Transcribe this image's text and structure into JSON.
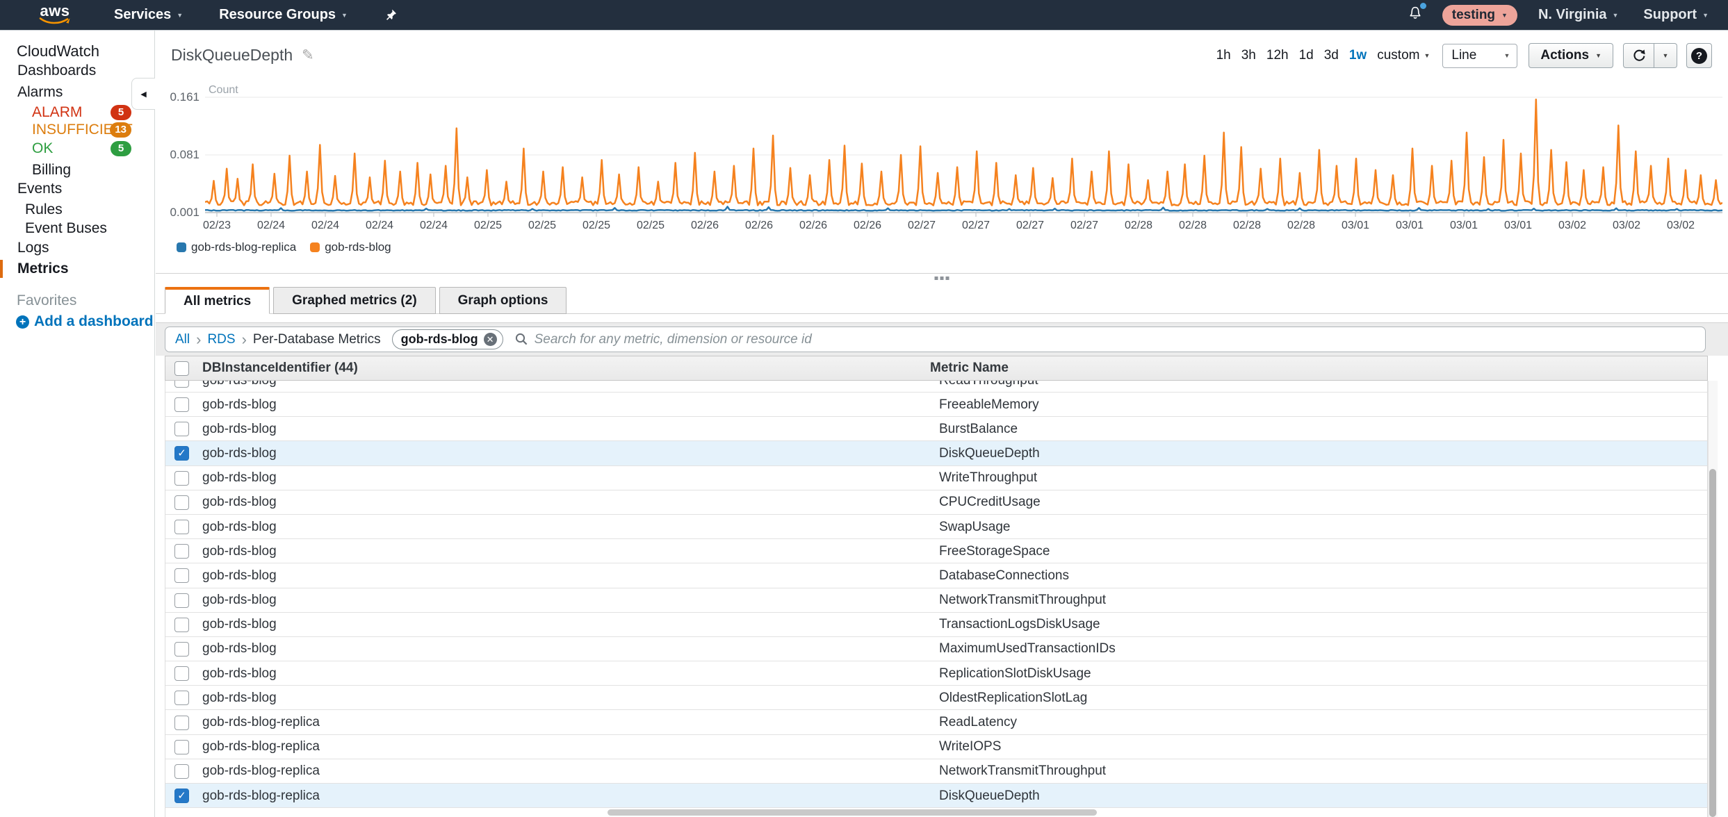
{
  "colors": {
    "nav_bg": "#232f3e",
    "accent_orange": "#ec7211",
    "link_blue": "#0073bb",
    "row_highlight": "#e5f2fb",
    "series_orange": "#f5821f",
    "series_blue": "#2878ae",
    "alarm_red": "#d13212",
    "insufficient_orange": "#dc7d0e",
    "ok_green": "#2e9e41",
    "account_pill": "#eda49a"
  },
  "nav": {
    "logo": "aws",
    "services": "Services",
    "resource_groups": "Resource Groups",
    "account": "testing",
    "region": "N. Virginia",
    "support": "Support"
  },
  "sidebar": {
    "items": [
      {
        "label": "CloudWatch",
        "type": "root"
      },
      {
        "label": "Dashboards",
        "type": "link"
      },
      {
        "label": "Alarms",
        "type": "link"
      },
      {
        "label": "ALARM",
        "type": "status",
        "color": "#d13212",
        "badge": "5"
      },
      {
        "label": "INSUFFICIENT",
        "type": "status",
        "color": "#dc7d0e",
        "badge": "13"
      },
      {
        "label": "OK",
        "type": "status",
        "color": "#2e9e41",
        "badge": "5"
      },
      {
        "label": "Billing",
        "type": "sublink"
      },
      {
        "label": "Events",
        "type": "link"
      },
      {
        "label": "Rules",
        "type": "sublink2"
      },
      {
        "label": "Event Buses",
        "type": "sublink2"
      },
      {
        "label": "Logs",
        "type": "link"
      },
      {
        "label": "Metrics",
        "type": "active"
      },
      {
        "label": "Favorites",
        "type": "muted"
      },
      {
        "label": "Add a dashboard",
        "type": "add"
      }
    ]
  },
  "header": {
    "title": "DiskQueueDepth"
  },
  "toolbar": {
    "time_ranges": [
      "1h",
      "3h",
      "12h",
      "1d",
      "3d",
      "1w"
    ],
    "active_range": "1w",
    "custom_label": "custom",
    "chart_type": "Line",
    "actions_label": "Actions"
  },
  "chart_data": {
    "type": "line",
    "title": "DiskQueueDepth",
    "ylabel": "Count",
    "y_ticks": [
      "0.161",
      "0.081",
      "0.001"
    ],
    "ylim": [
      0.001,
      0.161
    ],
    "grid": "horizontal",
    "legend_position": "bottom-left",
    "x_ticks": [
      "02/23",
      "02/24",
      "02/24",
      "02/24",
      "02/24",
      "02/25",
      "02/25",
      "02/25",
      "02/25",
      "02/26",
      "02/26",
      "02/26",
      "02/26",
      "02/27",
      "02/27",
      "02/27",
      "02/27",
      "02/28",
      "02/28",
      "02/28",
      "02/28",
      "03/01",
      "03/01",
      "03/01",
      "03/01",
      "03/02",
      "03/02",
      "03/02"
    ],
    "series": [
      {
        "name": "gob-rds-blog-replica",
        "color": "#2878ae",
        "baseline": 0.0035,
        "noise": 0.0012,
        "spikes": [
          [
            0.05,
            0.0072
          ],
          [
            0.145,
            0.0065
          ],
          [
            0.215,
            0.006
          ],
          [
            0.27,
            0.0075
          ],
          [
            0.345,
            0.0092
          ],
          [
            0.372,
            0.0085
          ],
          [
            0.45,
            0.007
          ],
          [
            0.53,
            0.006
          ],
          [
            0.56,
            0.0065
          ],
          [
            0.632,
            0.008
          ],
          [
            0.7,
            0.006
          ],
          [
            0.722,
            0.007
          ],
          [
            0.8,
            0.0075
          ],
          [
            0.845,
            0.006
          ],
          [
            0.876,
            0.0065
          ],
          [
            0.93,
            0.007
          ],
          [
            0.97,
            0.006
          ]
        ]
      },
      {
        "name": "gob-rds-blog",
        "color": "#f5821f",
        "baseline": 0.011,
        "noise": 0.006,
        "spikes": [
          [
            0.006,
            0.045
          ],
          [
            0.014,
            0.062
          ],
          [
            0.022,
            0.048
          ],
          [
            0.031,
            0.068
          ],
          [
            0.045,
            0.055
          ],
          [
            0.056,
            0.08
          ],
          [
            0.067,
            0.058
          ],
          [
            0.076,
            0.095
          ],
          [
            0.086,
            0.052
          ],
          [
            0.098,
            0.083
          ],
          [
            0.108,
            0.05
          ],
          [
            0.118,
            0.073
          ],
          [
            0.129,
            0.058
          ],
          [
            0.14,
            0.07
          ],
          [
            0.149,
            0.054
          ],
          [
            0.158,
            0.066
          ],
          [
            0.165,
            0.118
          ],
          [
            0.173,
            0.05
          ],
          [
            0.186,
            0.06
          ],
          [
            0.198,
            0.044
          ],
          [
            0.21,
            0.09
          ],
          [
            0.223,
            0.058
          ],
          [
            0.236,
            0.064
          ],
          [
            0.248,
            0.05
          ],
          [
            0.261,
            0.074
          ],
          [
            0.273,
            0.054
          ],
          [
            0.286,
            0.064
          ],
          [
            0.298,
            0.044
          ],
          [
            0.31,
            0.07
          ],
          [
            0.323,
            0.084
          ],
          [
            0.336,
            0.058
          ],
          [
            0.348,
            0.066
          ],
          [
            0.361,
            0.09
          ],
          [
            0.374,
            0.108
          ],
          [
            0.386,
            0.063
          ],
          [
            0.399,
            0.053
          ],
          [
            0.411,
            0.074
          ],
          [
            0.421,
            0.094
          ],
          [
            0.433,
            0.069
          ],
          [
            0.446,
            0.058
          ],
          [
            0.458,
            0.081
          ],
          [
            0.471,
            0.093
          ],
          [
            0.483,
            0.056
          ],
          [
            0.496,
            0.064
          ],
          [
            0.509,
            0.086
          ],
          [
            0.521,
            0.07
          ],
          [
            0.534,
            0.053
          ],
          [
            0.546,
            0.063
          ],
          [
            0.559,
            0.049
          ],
          [
            0.571,
            0.076
          ],
          [
            0.584,
            0.058
          ],
          [
            0.596,
            0.086
          ],
          [
            0.609,
            0.068
          ],
          [
            0.621,
            0.046
          ],
          [
            0.634,
            0.058
          ],
          [
            0.646,
            0.068
          ],
          [
            0.659,
            0.08
          ],
          [
            0.671,
            0.112
          ],
          [
            0.683,
            0.092
          ],
          [
            0.696,
            0.062
          ],
          [
            0.709,
            0.076
          ],
          [
            0.721,
            0.056
          ],
          [
            0.734,
            0.088
          ],
          [
            0.746,
            0.066
          ],
          [
            0.759,
            0.076
          ],
          [
            0.771,
            0.06
          ],
          [
            0.783,
            0.053
          ],
          [
            0.796,
            0.09
          ],
          [
            0.809,
            0.066
          ],
          [
            0.821,
            0.073
          ],
          [
            0.831,
            0.112
          ],
          [
            0.843,
            0.078
          ],
          [
            0.856,
            0.102
          ],
          [
            0.867,
            0.083
          ],
          [
            0.877,
            0.158
          ],
          [
            0.887,
            0.088
          ],
          [
            0.897,
            0.071
          ],
          [
            0.909,
            0.06
          ],
          [
            0.921,
            0.064
          ],
          [
            0.931,
            0.122
          ],
          [
            0.943,
            0.086
          ],
          [
            0.953,
            0.066
          ],
          [
            0.964,
            0.076
          ],
          [
            0.975,
            0.06
          ],
          [
            0.986,
            0.053
          ],
          [
            0.996,
            0.046
          ]
        ]
      }
    ]
  },
  "tabs": [
    {
      "label": "All metrics",
      "active": true
    },
    {
      "label": "Graphed metrics (2)",
      "active": false
    },
    {
      "label": "Graph options",
      "active": false
    }
  ],
  "search": {
    "breadcrumbs": [
      {
        "label": "All",
        "link": true
      },
      {
        "label": "RDS",
        "link": true
      },
      {
        "label": "Per-Database Metrics",
        "link": false
      }
    ],
    "filter_tag": "gob-rds-blog",
    "placeholder": "Search for any metric, dimension or resource id"
  },
  "table": {
    "columns": [
      "DBInstanceIdentifier (44)",
      "Metric Name"
    ],
    "rows": [
      {
        "instance": "gob-rds-blog",
        "metric": "ReadThroughput",
        "checked": false
      },
      {
        "instance": "gob-rds-blog",
        "metric": "FreeableMemory",
        "checked": false
      },
      {
        "instance": "gob-rds-blog",
        "metric": "BurstBalance",
        "checked": false
      },
      {
        "instance": "gob-rds-blog",
        "metric": "DiskQueueDepth",
        "checked": true
      },
      {
        "instance": "gob-rds-blog",
        "metric": "WriteThroughput",
        "checked": false
      },
      {
        "instance": "gob-rds-blog",
        "metric": "CPUCreditUsage",
        "checked": false
      },
      {
        "instance": "gob-rds-blog",
        "metric": "SwapUsage",
        "checked": false
      },
      {
        "instance": "gob-rds-blog",
        "metric": "FreeStorageSpace",
        "checked": false
      },
      {
        "instance": "gob-rds-blog",
        "metric": "DatabaseConnections",
        "checked": false
      },
      {
        "instance": "gob-rds-blog",
        "metric": "NetworkTransmitThroughput",
        "checked": false
      },
      {
        "instance": "gob-rds-blog",
        "metric": "TransactionLogsDiskUsage",
        "checked": false
      },
      {
        "instance": "gob-rds-blog",
        "metric": "MaximumUsedTransactionIDs",
        "checked": false
      },
      {
        "instance": "gob-rds-blog",
        "metric": "ReplicationSlotDiskUsage",
        "checked": false
      },
      {
        "instance": "gob-rds-blog",
        "metric": "OldestReplicationSlotLag",
        "checked": false
      },
      {
        "instance": "gob-rds-blog-replica",
        "metric": "ReadLatency",
        "checked": false
      },
      {
        "instance": "gob-rds-blog-replica",
        "metric": "WriteIOPS",
        "checked": false
      },
      {
        "instance": "gob-rds-blog-replica",
        "metric": "NetworkTransmitThroughput",
        "checked": false
      },
      {
        "instance": "gob-rds-blog-replica",
        "metric": "DiskQueueDepth",
        "checked": true
      }
    ]
  }
}
